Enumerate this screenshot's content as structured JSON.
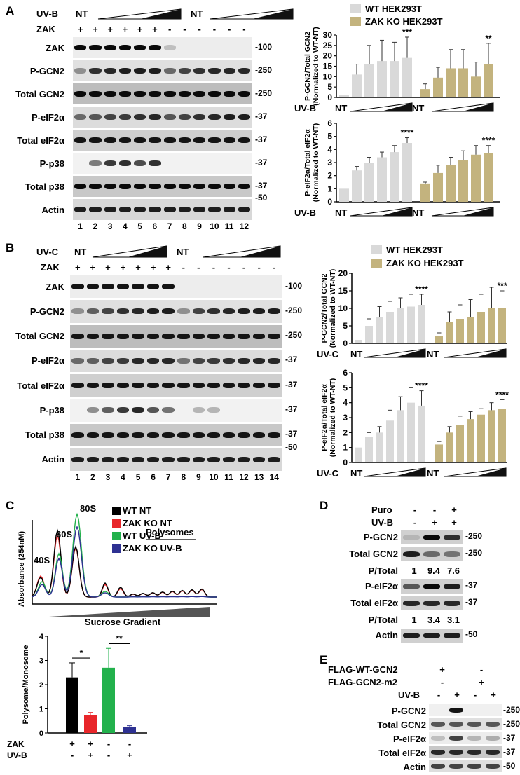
{
  "panelA": {
    "letter": "A",
    "treatment_label": "UV-B",
    "nt": "NT",
    "zak_label": "ZAK",
    "zak_signs": [
      "+",
      "+",
      "+",
      "+",
      "+",
      "+",
      "-",
      "-",
      "-",
      "-",
      "-",
      "-"
    ],
    "rows": [
      "ZAK",
      "P-GCN2",
      "Total GCN2",
      "P-eIF2α",
      "Total eIF2α",
      "P-p38",
      "Total p38",
      "Actin"
    ],
    "mw": [
      "-100",
      "-250",
      "-250",
      "-37",
      "-37",
      "-37",
      "-37",
      "-50"
    ],
    "lanes": [
      "1",
      "2",
      "3",
      "4",
      "5",
      "6",
      "7",
      "8",
      "9",
      "10",
      "11",
      "12"
    ],
    "legend": [
      "WT HEK293T",
      "ZAK KO HEK293T"
    ],
    "x_label": "UV-B",
    "nt_x": "NT"
  },
  "panelB": {
    "letter": "B",
    "treatment_label": "UV-C",
    "nt": "NT",
    "zak_label": "ZAK",
    "zak_signs": [
      "+",
      "+",
      "+",
      "+",
      "+",
      "+",
      "+",
      "-",
      "-",
      "-",
      "-",
      "-",
      "-",
      "-"
    ],
    "rows": [
      "ZAK",
      "P-GCN2",
      "Total GCN2",
      "P-eIF2α",
      "Total eIF2α",
      "P-p38",
      "Total p38",
      "Actin"
    ],
    "mw": [
      "-100",
      "-250",
      "-250",
      "-37",
      "-37",
      "-37",
      "-37",
      "-50"
    ],
    "lanes": [
      "1",
      "2",
      "3",
      "4",
      "5",
      "6",
      "7",
      "8",
      "9",
      "10",
      "11",
      "12",
      "13",
      "14"
    ],
    "legend": [
      "WT HEK293T",
      "ZAK KO HEK293T"
    ],
    "x_label": "UV-C",
    "nt_x": "NT"
  },
  "panelC": {
    "letter": "C",
    "peaks": [
      "40S",
      "60S",
      "80S"
    ],
    "polysomes": "Polysomes",
    "ylabel": "Absorbance (254nM)",
    "xlabel": "Sucrose Gradient",
    "legend": [
      "WT NT",
      "ZAK KO NT",
      "WT UV-B",
      "ZAK KO UV-B"
    ],
    "row_zak": "ZAK",
    "row_uvb": "UV-B",
    "zak_signs": [
      "+",
      "+",
      "-",
      "-"
    ],
    "uvb_signs": [
      "-",
      "+",
      "-",
      "+"
    ]
  },
  "panelD": {
    "letter": "D",
    "puro_label": "Puro",
    "uvb_label": "UV-B",
    "puro_signs": [
      "-",
      "-",
      "+"
    ],
    "uvb_signs": [
      "-",
      "+",
      "+"
    ],
    "rows": [
      "P-GCN2",
      "Total GCN2",
      "P/Total",
      "P-eIF2α",
      "Total eIF2α",
      "P/Total",
      "Actin"
    ],
    "ratios1": [
      "1",
      "9.4",
      "7.6"
    ],
    "ratios2": [
      "1",
      "3.4",
      "3.1"
    ],
    "mw": [
      "-250",
      "-250",
      "-37",
      "-37",
      "-50"
    ]
  },
  "panelE": {
    "letter": "E",
    "wt_label": "FLAG-WT-GCN2",
    "m2_label": "FLAG-GCN2-m2",
    "uvb_label": "UV-B",
    "wt_signs": [
      "+",
      "-"
    ],
    "m2_signs": [
      "-",
      "+"
    ],
    "uvb_signs": [
      "-",
      "+",
      "-",
      "+"
    ],
    "rows": [
      "P-GCN2",
      "Total GCN2",
      "P-eIF2α",
      "Total eIF2α",
      "Actin"
    ],
    "mw": [
      "-250",
      "-250",
      "-37",
      "-37",
      "-50"
    ]
  },
  "colors": {
    "wt": "#d9d9d9",
    "ko": "#c3b37e",
    "black": "#000000",
    "red": "#e8262a",
    "green": "#22b14c",
    "blue": "#2e3192"
  },
  "chart_data": [
    {
      "type": "bar",
      "id": "A1",
      "ylabel": "P-GCN2/Total GCN2 (Normalized to WT-NT)",
      "ylim": [
        0,
        30
      ],
      "yticks": [
        "0",
        "5",
        "10",
        "15",
        "20",
        "25",
        "30"
      ],
      "series": [
        {
          "name": "WT HEK293T",
          "values": [
            1,
            11,
            16,
            17.5,
            17.5,
            19
          ],
          "errors": [
            0,
            5,
            9,
            10,
            9,
            10
          ]
        },
        {
          "name": "ZAK KO HEK293T",
          "values": [
            4,
            9.5,
            14,
            14,
            10,
            16
          ],
          "errors": [
            2.5,
            5,
            9,
            9,
            7,
            10
          ]
        }
      ],
      "significance": [
        "***",
        "**"
      ]
    },
    {
      "type": "bar",
      "id": "A2",
      "ylabel": "P-eIF2α/Total eIF2α (Normalized to WT-NT)",
      "ylim": [
        0,
        6
      ],
      "yticks": [
        "0",
        "1",
        "2",
        "3",
        "4",
        "5",
        "6"
      ],
      "series": [
        {
          "name": "WT HEK293T",
          "values": [
            1,
            2.4,
            3,
            3.4,
            3.8,
            4.5
          ],
          "errors": [
            0,
            0.3,
            0.4,
            0.4,
            0.5,
            0.4
          ]
        },
        {
          "name": "ZAK KO HEK293T",
          "values": [
            1.4,
            2.2,
            2.8,
            3.2,
            3.6,
            3.7
          ],
          "errors": [
            0.1,
            0.6,
            0.6,
            0.7,
            0.7,
            0.6
          ]
        }
      ],
      "significance": [
        "****",
        "****"
      ]
    },
    {
      "type": "bar",
      "id": "B1",
      "ylabel": "P-GCN2/Total GCN2 (Normalized to WT-NT)",
      "ylim": [
        0,
        20
      ],
      "yticks": [
        "0",
        "5",
        "10",
        "15",
        "20"
      ],
      "series": [
        {
          "name": "WT HEK293T",
          "values": [
            1,
            5,
            7.5,
            9,
            10,
            10.5,
            11
          ],
          "errors": [
            0,
            2,
            3,
            3,
            3,
            3.5,
            3
          ]
        },
        {
          "name": "ZAK KO HEK293T",
          "values": [
            2,
            6,
            7,
            7.5,
            9,
            10,
            10
          ],
          "errors": [
            1,
            3,
            4,
            5,
            5,
            6,
            5
          ]
        }
      ],
      "significance": [
        "****",
        "***"
      ]
    },
    {
      "type": "bar",
      "id": "B2",
      "ylabel": "P-eIF2α/Total eIF2α (Normalized to WT-NT)",
      "ylim": [
        0,
        6
      ],
      "yticks": [
        "0",
        "1",
        "2",
        "3",
        "4",
        "5",
        "6"
      ],
      "series": [
        {
          "name": "WT HEK293T",
          "values": [
            1,
            1.7,
            2,
            2.8,
            3.5,
            4,
            3.8
          ],
          "errors": [
            0,
            0.3,
            0.4,
            0.7,
            0.9,
            1,
            1
          ]
        },
        {
          "name": "ZAK KO HEK293T",
          "values": [
            1.2,
            2,
            2.5,
            2.9,
            3.2,
            3.5,
            3.6
          ],
          "errors": [
            0.2,
            0.4,
            0.6,
            0.5,
            0.4,
            0.5,
            0.6
          ]
        }
      ],
      "significance": [
        "****",
        "****"
      ]
    },
    {
      "type": "bar",
      "id": "C1",
      "ylabel": "Polysome/Monosome",
      "ylim": [
        0,
        4
      ],
      "yticks": [
        "0",
        "1",
        "2",
        "3",
        "4"
      ],
      "categories": [
        "WT NT",
        "WT UV-B",
        "ZAK KO NT",
        "ZAK KO UV-B"
      ],
      "values": [
        2.3,
        0.75,
        2.7,
        0.25
      ],
      "errors": [
        0.6,
        0.1,
        0.8,
        0.05
      ],
      "significance": [
        "*",
        "**"
      ]
    }
  ]
}
